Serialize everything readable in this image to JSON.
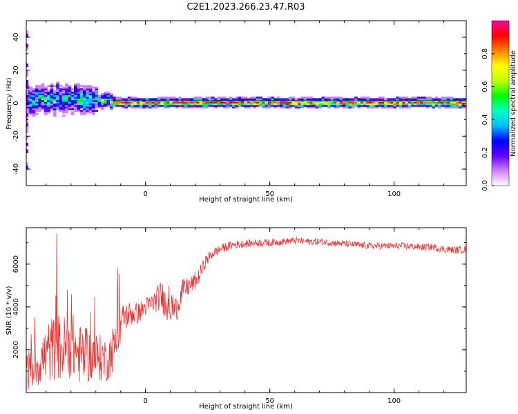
{
  "title": "C2E1.2023.266.23.47.R03",
  "chart_data": [
    {
      "type": "heatmap",
      "xlabel": "Height of straight line (km)",
      "ylabel": "Frequency (Hz)",
      "xlim": [
        -48,
        129
      ],
      "ylim": [
        -50,
        50
      ],
      "x_ticks": [
        0,
        50,
        100
      ],
      "y_ticks": [
        -40,
        -20,
        0,
        20,
        40
      ],
      "grid": false,
      "description_of_values": [
        {
          "x_range": [
            -48,
            -20
          ],
          "freq_center": 2,
          "freq_spread": 8,
          "amplitude": 0.35
        },
        {
          "x_range": [
            -20,
            -14
          ],
          "freq_center": 1.5,
          "freq_spread": 4,
          "amplitude": 0.5
        },
        {
          "x_range": [
            -14,
            129
          ],
          "freq_center": 0,
          "freq_spread": 2.5,
          "amplitude": 0.75
        }
      ],
      "colorbar": {
        "label": "Normalized spectral amplitude",
        "range": [
          0,
          1
        ],
        "ticks": [
          "0.0",
          "0.2",
          "0.4",
          "0.6",
          "0.8"
        ],
        "colors": [
          "#ffffff",
          "#d080ff",
          "#6000ff",
          "#0000ff",
          "#00c0ff",
          "#00ffc0",
          "#00ff00",
          "#c0ff00",
          "#ffff00",
          "#ff8000",
          "#ff0000",
          "#ff00a0"
        ]
      }
    },
    {
      "type": "line",
      "xlabel": "Height of straight line (km)",
      "ylabel": "SNR (10 * v/v)",
      "xlim": [
        -48,
        129
      ],
      "ylim": [
        0,
        7700
      ],
      "x_ticks": [
        0,
        50,
        100
      ],
      "y_ticks": [
        2000,
        4000,
        6000
      ],
      "grid": false,
      "series": [
        {
          "color": "#ee3333",
          "x": [
            -48,
            -45,
            -42,
            -39,
            -36,
            -33,
            -30,
            -27,
            -24,
            -21,
            -18,
            -15,
            -12,
            -9,
            -6,
            -3,
            0,
            3,
            6,
            9,
            12,
            15,
            18,
            21,
            24,
            27,
            30,
            35,
            40,
            45,
            50,
            55,
            60,
            65,
            70,
            75,
            80,
            85,
            90,
            95,
            100,
            105,
            110,
            115,
            120,
            125,
            129
          ],
          "y": [
            1000,
            1200,
            1500,
            1900,
            2200,
            2000,
            2300,
            1800,
            1700,
            1700,
            1600,
            1500,
            2400,
            3500,
            3700,
            3700,
            4000,
            4200,
            4500,
            4200,
            3800,
            4800,
            5000,
            5300,
            6100,
            6500,
            6700,
            6900,
            6950,
            7000,
            7000,
            7050,
            7100,
            7050,
            7050,
            7000,
            6950,
            6900,
            6850,
            6850,
            6850,
            6850,
            6800,
            6800,
            6700,
            6650,
            6700
          ],
          "noise": [
            900,
            1000,
            1200,
            1500,
            1600,
            1600,
            1600,
            1400,
            1300,
            1200,
            1100,
            1000,
            1100,
            700,
            600,
            500,
            450,
            500,
            700,
            900,
            700,
            500,
            450,
            400,
            300,
            250,
            220,
            200,
            180,
            170,
            170,
            160,
            160,
            160,
            160,
            160,
            160,
            160,
            160,
            160,
            160,
            160,
            160,
            170,
            170,
            170,
            170
          ]
        }
      ]
    }
  ]
}
